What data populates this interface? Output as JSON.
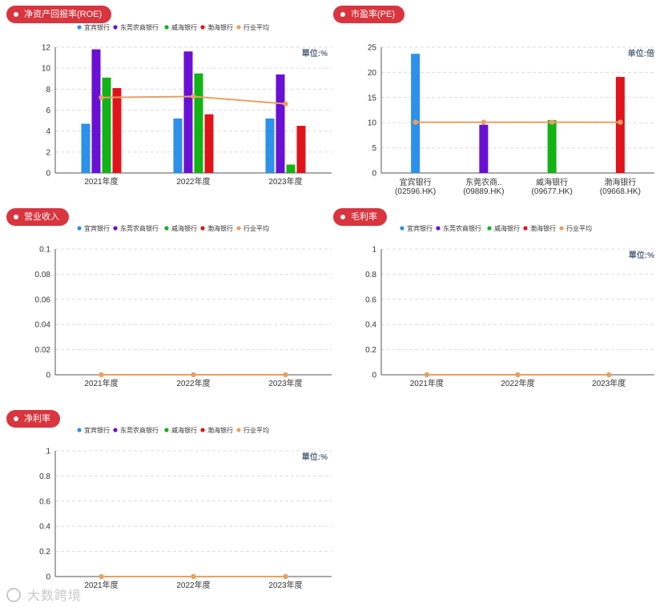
{
  "colors": {
    "series": [
      "#2d90ea",
      "#6a0fd4",
      "#12b316",
      "#e0131b",
      "#e8a062"
    ],
    "pill": "#d9353f",
    "axis": "#555555",
    "grid": "#dcdcdc"
  },
  "legend_names": [
    "宜宾银行",
    "东莞农商银行",
    "威海银行",
    "渤海银行",
    "行业平均"
  ],
  "watermark": "大数跨境",
  "chart_data": [
    {
      "id": "roe",
      "type": "bar",
      "title": "净资产回报率(ROE)",
      "unit": "單位:%",
      "categories": [
        "2021年度",
        "2022年度",
        "2023年度"
      ],
      "ylim": [
        0,
        12
      ],
      "ticks": [
        "0",
        "2",
        "4",
        "6",
        "8",
        "10",
        "12"
      ],
      "grid": true,
      "legend": "top",
      "series": [
        {
          "name": "宜宾银行",
          "values": [
            4.7,
            5.2,
            5.2
          ]
        },
        {
          "name": "东莞农商银行",
          "values": [
            11.8,
            11.6,
            9.4
          ]
        },
        {
          "name": "威海银行",
          "values": [
            9.1,
            9.5,
            0.8
          ]
        },
        {
          "name": "渤海银行",
          "values": [
            8.1,
            5.6,
            4.5
          ]
        }
      ],
      "line": {
        "name": "行业平均",
        "values": [
          7.2,
          7.3,
          6.6
        ]
      }
    },
    {
      "id": "pe",
      "type": "bar",
      "title": "市盈率(PE)",
      "unit": "单位:倍",
      "categories": [
        "宜宾银行\n(02596.HK)",
        "东莞农商..\n(09889.HK)",
        "威海银行\n(09677.HK)",
        "渤海银行\n(09668.HK)"
      ],
      "ylim": [
        0,
        25
      ],
      "ticks": [
        "0",
        "5",
        "10",
        "15",
        "20",
        "25"
      ],
      "grid": true,
      "legend": "none",
      "series": [
        {
          "name": "宜宾银行",
          "values": [
            23.7,
            null,
            null,
            null
          ]
        },
        {
          "name": "东莞农商银行",
          "values": [
            null,
            9.6,
            null,
            null
          ]
        },
        {
          "name": "威海银行",
          "values": [
            null,
            null,
            10.5,
            null
          ]
        },
        {
          "name": "渤海银行",
          "values": [
            null,
            null,
            null,
            19.1
          ]
        }
      ],
      "line": {
        "name": "行业平均",
        "values": [
          10.1,
          10.1,
          10.1,
          10.1
        ]
      }
    },
    {
      "id": "revenue",
      "type": "line",
      "title": "营业收入",
      "unit": "",
      "categories": [
        "2021年度",
        "2022年度",
        "2023年度"
      ],
      "ylim": [
        0,
        0.1
      ],
      "ticks": [
        "0",
        "0.02",
        "0.04",
        "0.06",
        "0.08",
        "0.1"
      ],
      "grid": true,
      "legend": "top",
      "series": [],
      "line": {
        "name": "行业平均",
        "values": [
          0,
          0,
          0
        ]
      }
    },
    {
      "id": "gross",
      "type": "line",
      "title": "毛利率",
      "unit": "單位:%",
      "categories": [
        "2021年度",
        "2022年度",
        "2023年度"
      ],
      "ylim": [
        0,
        1
      ],
      "ticks": [
        "0",
        "0.2",
        "0.4",
        "0.6",
        "0.8",
        "1"
      ],
      "grid": true,
      "legend": "top",
      "series": [],
      "line": {
        "name": "行业平均",
        "values": [
          0,
          0,
          0
        ]
      }
    },
    {
      "id": "net",
      "type": "line",
      "title": "净利率",
      "unit": "單位:%",
      "categories": [
        "2021年度",
        "2022年度",
        "2023年度"
      ],
      "ylim": [
        0,
        1
      ],
      "ticks": [
        "0",
        "0.2",
        "0.4",
        "0.6",
        "0.8",
        "1"
      ],
      "grid": true,
      "legend": "top",
      "series": [],
      "line": {
        "name": "行业平均",
        "values": [
          0,
          0,
          0
        ]
      }
    }
  ]
}
